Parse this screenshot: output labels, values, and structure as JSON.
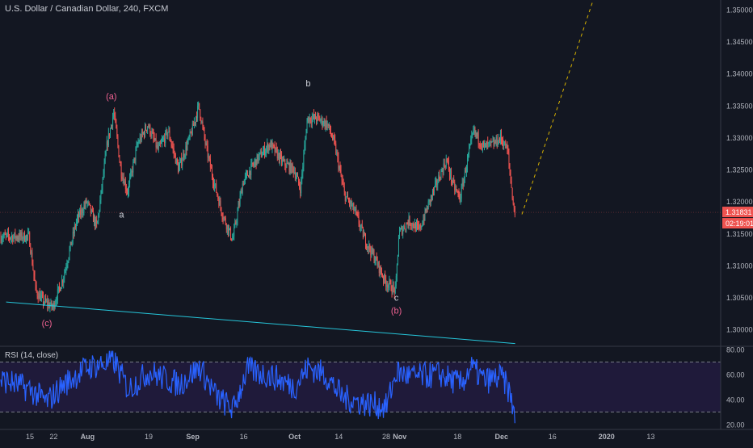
{
  "header": {
    "title": "U.S. Dollar / Canadian Dollar, 240, FXCM"
  },
  "colors": {
    "background": "#131722",
    "up": "#26a69a",
    "down": "#ef5350",
    "rsi_line": "#2962ff",
    "rsi_band": "#1f1a3a",
    "trendline": "#26c6da",
    "projection": "#d4b000",
    "wave_pink": "#f06292",
    "text": "#b2b5be",
    "grid_border": "#363a45"
  },
  "chart_data": [
    {
      "type": "candlestick",
      "title": "U.S. Dollar / Canadian Dollar, 240, FXCM",
      "ylim": [
        1.2975,
        1.3515
      ],
      "y_ticks": [
        "1.35000",
        "1.34500",
        "1.34000",
        "1.33500",
        "1.33000",
        "1.32500",
        "1.32000",
        "1.31500",
        "1.31000",
        "1.30500",
        "1.30000"
      ],
      "x_ticks": [
        "15",
        "22",
        "Aug",
        "19",
        "Sep",
        "16",
        "Oct",
        "14",
        "28",
        "Nov",
        "18",
        "Dec",
        "16",
        "2020",
        "13"
      ],
      "last_price": "1.31831",
      "countdown": "02:19:01",
      "price_path": [
        [
          "Jul 15",
          1.3145
        ],
        [
          "Jul 17",
          1.306
        ],
        [
          "Jul 19",
          1.3045
        ],
        [
          "Jul 22",
          1.3035
        ],
        [
          "Jul 25",
          1.308
        ],
        [
          "Jul 29",
          1.317
        ],
        [
          "Aug 1",
          1.32
        ],
        [
          "Aug 4",
          1.316
        ],
        [
          "Aug 7",
          1.329
        ],
        [
          "Aug 9",
          1.334
        ],
        [
          "Aug 11",
          1.325
        ],
        [
          "Aug 13",
          1.3215
        ],
        [
          "Aug 16",
          1.329
        ],
        [
          "Aug 19",
          1.332
        ],
        [
          "Aug 22",
          1.328
        ],
        [
          "Aug 25",
          1.331
        ],
        [
          "Aug 28",
          1.325
        ],
        [
          "Sep 1",
          1.331
        ],
        [
          "Sep 3",
          1.335
        ],
        [
          "Sep 5",
          1.329
        ],
        [
          "Sep 7",
          1.324
        ],
        [
          "Sep 10",
          1.318
        ],
        [
          "Sep 13",
          1.314
        ],
        [
          "Sep 16",
          1.323
        ],
        [
          "Sep 20",
          1.3265
        ],
        [
          "Sep 24",
          1.329
        ],
        [
          "Sep 28",
          1.326
        ],
        [
          "Oct 1",
          1.325
        ],
        [
          "Oct 3",
          1.322
        ],
        [
          "Oct 5",
          1.333
        ],
        [
          "Oct 8",
          1.333
        ],
        [
          "Oct 11",
          1.332
        ],
        [
          "Oct 13",
          1.329
        ],
        [
          "Oct 16",
          1.321
        ],
        [
          "Oct 19",
          1.3185
        ],
        [
          "Oct 22",
          1.314
        ],
        [
          "Oct 25",
          1.311
        ],
        [
          "Oct 28",
          1.3075
        ],
        [
          "Oct 31",
          1.306
        ],
        [
          "Nov 1",
          1.315
        ],
        [
          "Nov 4",
          1.317
        ],
        [
          "Nov 7",
          1.3155
        ],
        [
          "Nov 10",
          1.32
        ],
        [
          "Nov 13",
          1.324
        ],
        [
          "Nov 15",
          1.3265
        ],
        [
          "Nov 17",
          1.3225
        ],
        [
          "Nov 19",
          1.3205
        ],
        [
          "Nov 21",
          1.326
        ],
        [
          "Nov 23",
          1.331
        ],
        [
          "Nov 26",
          1.3285
        ],
        [
          "Nov 29",
          1.329
        ],
        [
          "Dec 1",
          1.33
        ],
        [
          "Dec 3",
          1.328
        ],
        [
          "Dec 4",
          1.323
        ],
        [
          "Dec 5",
          1.3183
        ]
      ],
      "annotations": [
        {
          "label": "(a)",
          "at": [
            "Aug 8",
            1.336
          ]
        },
        {
          "label": "a",
          "at": [
            "Aug 11",
            1.3175
          ]
        },
        {
          "label": "b",
          "at": [
            "Oct 5",
            1.338
          ]
        },
        {
          "label": "c",
          "at": [
            "Oct 31",
            1.3045
          ]
        },
        {
          "label": "(b)",
          "at": [
            "Oct 31",
            1.3025
          ]
        },
        {
          "label": "(c)",
          "at": [
            "Jul 20",
            1.3005
          ]
        }
      ],
      "trendline": [
        [
          "Jul 8",
          1.3043
        ],
        [
          "Dec 5",
          1.2978
        ]
      ],
      "projection": [
        [
          "Dec 7",
          1.318
        ],
        [
          "Dec 28",
          1.3515
        ]
      ]
    },
    {
      "type": "line",
      "title": "RSI (14, close)",
      "ylim": [
        16,
        82
      ],
      "y_ticks": [
        "80.00",
        "60.00",
        "40.00",
        "20.00"
      ],
      "levels": [
        70,
        30
      ],
      "series": [
        {
          "values_path": [
            [
              "Jul 8",
              55
            ],
            [
              "Jul 15",
              48
            ],
            [
              "Jul 20",
              38
            ],
            [
              "Jul 25",
              52
            ],
            [
              "Aug 1",
              66
            ],
            [
              "Aug 9",
              70
            ],
            [
              "Aug 13",
              48
            ],
            [
              "Aug 19",
              62
            ],
            [
              "Aug 28",
              52
            ],
            [
              "Sep 3",
              66
            ],
            [
              "Sep 8",
              42
            ],
            [
              "Sep 13",
              32
            ],
            [
              "Sep 17",
              64
            ],
            [
              "Sep 25",
              58
            ],
            [
              "Oct 1",
              50
            ],
            [
              "Oct 5",
              66
            ],
            [
              "Oct 10",
              60
            ],
            [
              "Oct 15",
              42
            ],
            [
              "Oct 20",
              38
            ],
            [
              "Oct 28",
              34
            ],
            [
              "Oct 31",
              62
            ],
            [
              "Nov 5",
              58
            ],
            [
              "Nov 13",
              60
            ],
            [
              "Nov 19",
              52
            ],
            [
              "Nov 22",
              66
            ],
            [
              "Nov 26",
              55
            ],
            [
              "Dec 1",
              58
            ],
            [
              "Dec 3",
              48
            ],
            [
              "Dec 5",
              27
            ]
          ]
        }
      ]
    }
  ]
}
